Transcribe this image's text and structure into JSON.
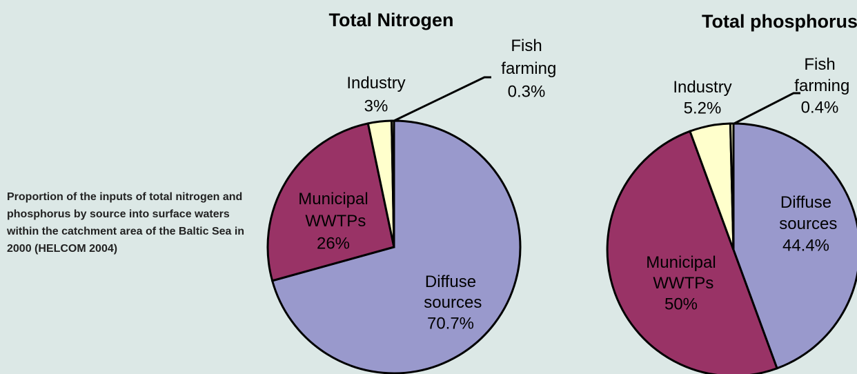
{
  "caption": "Proportion of the inputs of total nitrogen and phosphorus by source into surface waters within the catchment area of the Baltic Sea in 2000 (HELCOM 2004)",
  "chart_data": [
    {
      "type": "pie",
      "title": "Total Nitrogen",
      "categories": [
        "Diffuse sources",
        "Municipal WWTPs",
        "Industry",
        "Fish farming"
      ],
      "values": [
        70.7,
        26,
        3,
        0.3
      ],
      "value_labels": [
        "70.7%",
        "26%",
        "3%",
        "0.3%"
      ],
      "colors": [
        "#9999cc",
        "#993366",
        "#ffffcc",
        "#ffffcc"
      ]
    },
    {
      "type": "pie",
      "title": "Total phosphorus",
      "categories": [
        "Diffuse sources",
        "Municipal WWTPs",
        "Industry",
        "Fish farming"
      ],
      "values": [
        44.4,
        50,
        5.2,
        0.4
      ],
      "value_labels": [
        "44.4%",
        "50%",
        "5.2%",
        "0.4%"
      ],
      "colors": [
        "#9999cc",
        "#993366",
        "#ffffcc",
        "#ffffcc"
      ]
    }
  ]
}
